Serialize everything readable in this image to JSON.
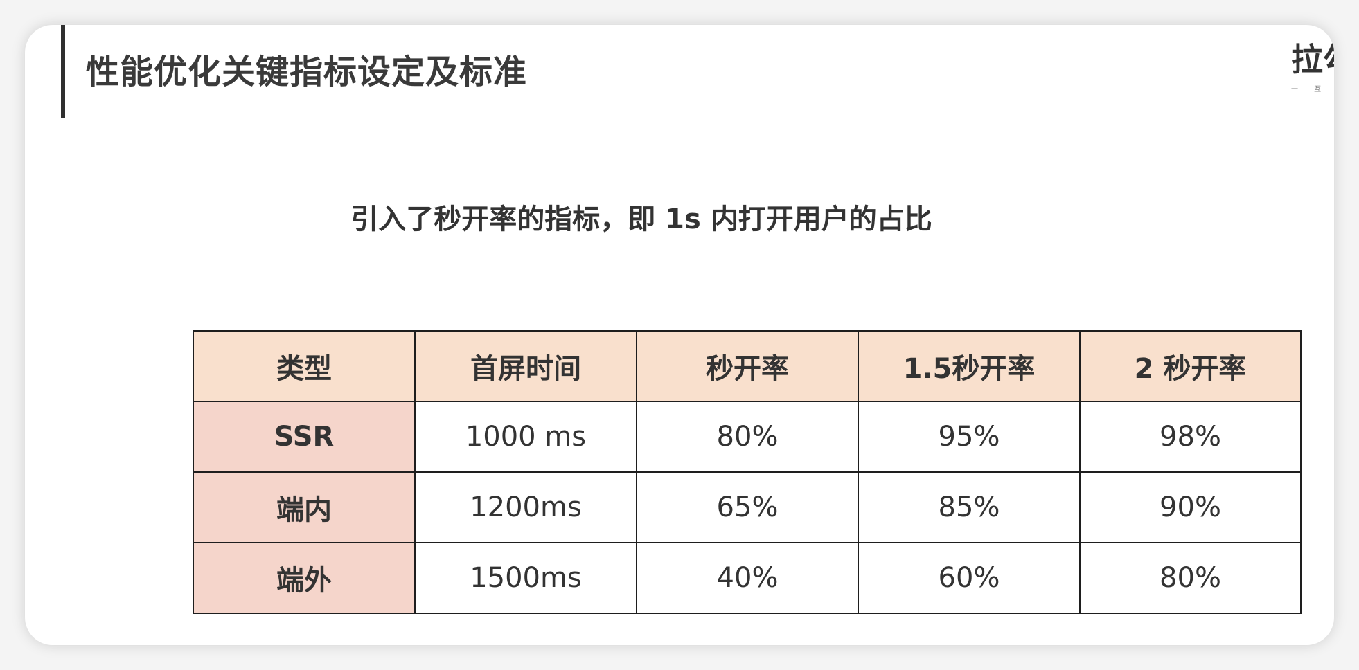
{
  "slide": {
    "title": "性能优化关键指标设定及标准",
    "subtitle": "引入了秒开率的指标，即 1s 内打开用户的占比",
    "brand_main": "拉勾",
    "brand_sub": "一 互 联"
  },
  "table": {
    "headers": [
      "类型",
      "首屏时间",
      "秒开率",
      "1.5秒开率",
      "2 秒开率"
    ],
    "rows": [
      [
        "SSR",
        "1000 ms",
        "80%",
        "95%",
        "98%"
      ],
      [
        "端内",
        "1200ms",
        "65%",
        "85%",
        "90%"
      ],
      [
        "端外",
        "1500ms",
        "40%",
        "60%",
        "80%"
      ]
    ]
  },
  "colors": {
    "header_bg": "#f9e0cd",
    "row_head_bg": "#f5d5cb",
    "border": "#1e1e1e",
    "text": "#333333"
  }
}
